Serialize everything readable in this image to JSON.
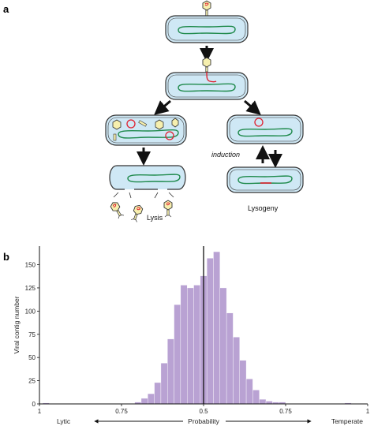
{
  "panel_a": {
    "letter": "a",
    "label_lysis": "Lysis",
    "label_lysogeny": "Lysogeny",
    "label_induction": "induction"
  },
  "panel_b": {
    "letter": "b"
  },
  "colors": {
    "cell_fill": "#cfe8f5",
    "cell_stroke": "#333333",
    "chromosome": "#1f8a4c",
    "phage_dna": "#e0202f",
    "capsid_fill": "#f6efae",
    "bar_fill": "#b9a2d3",
    "bar_stroke": "#ffffff"
  },
  "chart_data": {
    "type": "bar",
    "ylabel": "Viral contig number",
    "xlabel": "Probability",
    "left_label": "Lytic",
    "right_label": "Temperate",
    "x_ticks": [
      1,
      0.75,
      0.5,
      0.75,
      1
    ],
    "x_tick_labels": [
      "1",
      "0.75",
      "0.5",
      "0.75",
      "1"
    ],
    "y_ticks": [
      0,
      25,
      50,
      75,
      100,
      125,
      150
    ],
    "ylim": [
      0,
      170
    ],
    "xlim": [
      -1.0,
      1.0
    ],
    "reference_line_x": 0.0,
    "bin_width": 0.04,
    "bins": [
      {
        "x": -0.96,
        "count": 1
      },
      {
        "x": -0.4,
        "count": 2
      },
      {
        "x": -0.36,
        "count": 6
      },
      {
        "x": -0.32,
        "count": 11
      },
      {
        "x": -0.28,
        "count": 23
      },
      {
        "x": -0.24,
        "count": 44
      },
      {
        "x": -0.2,
        "count": 70
      },
      {
        "x": -0.16,
        "count": 107
      },
      {
        "x": -0.12,
        "count": 128
      },
      {
        "x": -0.08,
        "count": 125
      },
      {
        "x": -0.04,
        "count": 128
      },
      {
        "x": 0.0,
        "count": 138
      },
      {
        "x": 0.04,
        "count": 157
      },
      {
        "x": 0.08,
        "count": 164
      },
      {
        "x": 0.12,
        "count": 125
      },
      {
        "x": 0.16,
        "count": 98
      },
      {
        "x": 0.2,
        "count": 72
      },
      {
        "x": 0.24,
        "count": 47
      },
      {
        "x": 0.28,
        "count": 27
      },
      {
        "x": 0.32,
        "count": 15
      },
      {
        "x": 0.36,
        "count": 5
      },
      {
        "x": 0.4,
        "count": 3
      },
      {
        "x": 0.44,
        "count": 2
      },
      {
        "x": 0.48,
        "count": 2
      },
      {
        "x": 0.88,
        "count": 1
      }
    ],
    "grid": false,
    "legend": "none"
  }
}
